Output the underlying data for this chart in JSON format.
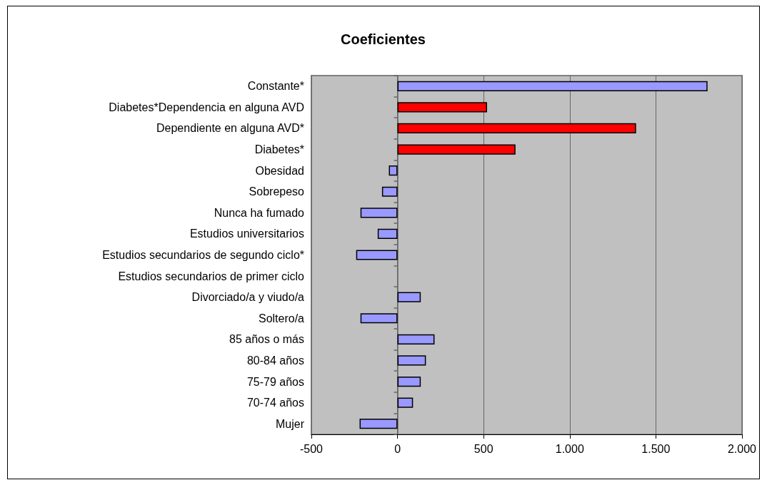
{
  "chart_data": {
    "type": "bar",
    "orientation": "horizontal",
    "title": "Coeficientes",
    "categories": [
      "Constante*",
      "Diabetes*Dependencia en alguna AVD",
      "Dependiente en alguna AVD*",
      "Diabetes*",
      "Obesidad",
      "Sobrepeso",
      "Nunca ha fumado",
      "Estudios universitarios",
      "Estudios secundarios de segundo ciclo*",
      "Estudios secundarios de primer ciclo",
      "Divorciado/a y viudo/a",
      "Soltero/a",
      "85 años o más",
      "80-84 años",
      "75-79 años",
      "70-74 años",
      "Mujer"
    ],
    "values": [
      1800,
      520,
      1385,
      685,
      -50,
      -90,
      -215,
      -115,
      -240,
      null,
      135,
      -215,
      215,
      165,
      135,
      90,
      -220
    ],
    "colors": [
      "#9999ff",
      "#ff0000",
      "#ff0000",
      "#ff0000",
      "#9999ff",
      "#9999ff",
      "#9999ff",
      "#9999ff",
      "#9999ff",
      null,
      "#9999ff",
      "#9999ff",
      "#9999ff",
      "#9999ff",
      "#9999ff",
      "#9999ff",
      "#9999ff"
    ],
    "xlim": [
      -500,
      2000
    ],
    "xticks": [
      -500,
      0,
      500,
      {
        "value": 1000,
        "label": "1.000"
      },
      {
        "value": 1500,
        "label": "1.500"
      },
      {
        "value": 2000,
        "label": "2.000"
      }
    ],
    "grid": "x"
  }
}
